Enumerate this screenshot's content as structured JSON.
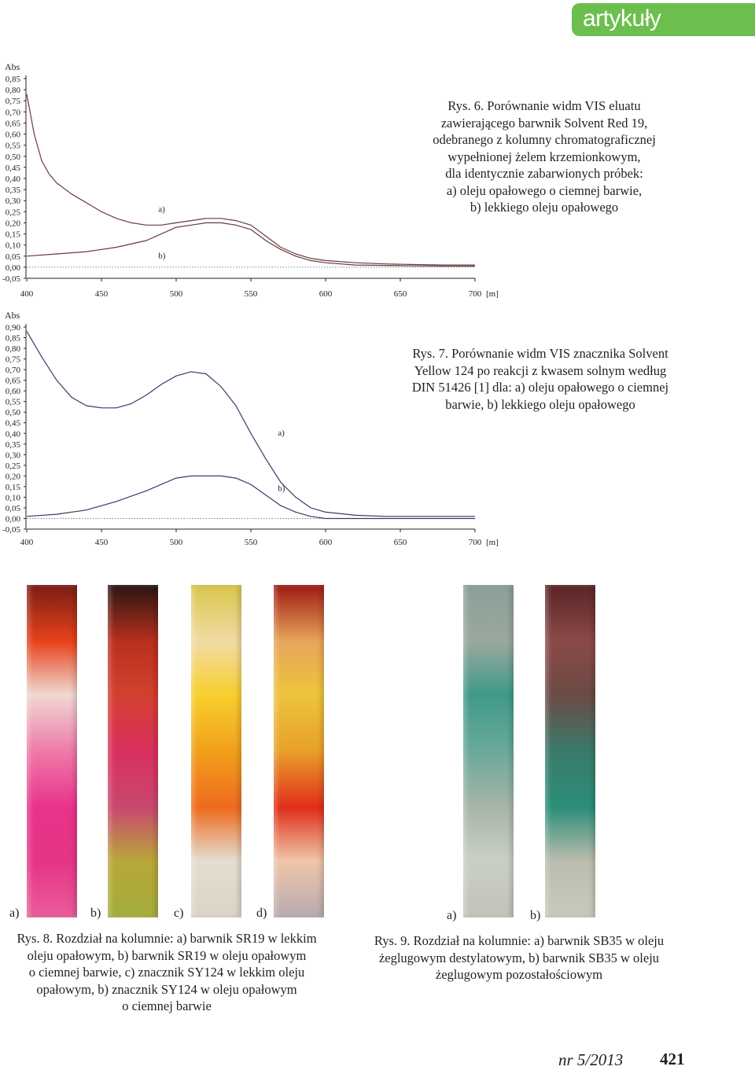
{
  "header": {
    "section": "artykuły"
  },
  "figures": [
    {
      "caption": "Rys. 6. Porównanie widm VIS eluatu zawierającego barwnik Solvent Red 19, odebranego z kolumny chromatograficznej wypełnionej żelem krzemionkowym, dla identycznie zabarwionych próbek: a) oleju opałowego o ciemnej barwie, b) lekkiego oleju opałowego",
      "caption_lines": [
        "Rys. 6. Porównanie widm VIS eluatu",
        "zawierającego barwnik Solvent Red 19,",
        "odebranego z kolumny chromatograficznej",
        "wypełnionej żelem krzemionkowym,",
        "dla identycznie zabarwionych próbek:",
        "a) oleju opałowego o ciemnej barwie,",
        "b) lekkiego oleju opałowego"
      ]
    },
    {
      "caption": "Rys. 7. Porównanie widm VIS znacznika Solvent Yellow 124 po reakcji z kwasem solnym według DIN 51426 [1] dla: a) oleju opałowego o ciemnej barwie, b) lekkiego oleju opałowego",
      "caption_lines": [
        "Rys. 7. Porównanie widm VIS znacznika Solvent",
        "Yellow 124 po reakcji z kwasem solnym według",
        "DIN 51426 [1] dla: a) oleju opałowego o ciemnej",
        "barwie, b) lekkiego oleju opałowego"
      ]
    },
    {
      "caption": "Rys. 8. Rozdział na kolumnie: a) barwnik SR19 w lekkim oleju opałowym, b) barwnik SR19 w oleju opałowym o ciemnej barwie, c) znacznik SY124 w lekkim oleju opałowym, b) znacznik SY124 w oleju opałowym o ciemnej barwie",
      "caption_lines": [
        "Rys. 8. Rozdział na kolumnie: a) barwnik SR19 w lekkim",
        "oleju opałowym, b) barwnik SR19 w oleju opałowym",
        "o ciemnej barwie, c) znacznik SY124 w lekkim oleju",
        "opałowym, b) znacznik SY124 w oleju opałowym",
        "o ciemnej barwie"
      ],
      "panel_labels": [
        "a)",
        "b)",
        "c)",
        "d)"
      ]
    },
    {
      "caption": "Rys. 9. Rozdział na kolumnie: a) barwnik SB35 w oleju żeglugowym destylatowym, b) barwnik SB35 w oleju żeglugowym pozostałościowym",
      "caption_lines": [
        "Rys. 9. Rozdział na kolumnie: a) barwnik SB35 w oleju",
        "żeglugowym destylatowym, b) barwnik SB35 w oleju",
        "żeglugowym pozostałościowym"
      ],
      "panel_labels": [
        "a)",
        "b)"
      ]
    }
  ],
  "chart_data": [
    {
      "type": "line",
      "ylabel": "Abs",
      "xunit": "[m]",
      "xlim": [
        400,
        700
      ],
      "ylim": [
        -0.05,
        0.85
      ],
      "xticks": [
        400,
        450,
        500,
        550,
        600,
        650,
        700
      ],
      "yticks": [
        "-0,05",
        "0,00",
        "0,05",
        "0,10",
        "0,15",
        "0,20",
        "0,25",
        "0,30",
        "0,35",
        "0,40",
        "0,45",
        "0,50",
        "0,55",
        "0,60",
        "0,65",
        "0,70",
        "0,75",
        "0,80",
        "0,85"
      ],
      "ytick_values": [
        -0.05,
        0.0,
        0.05,
        0.1,
        0.15,
        0.2,
        0.25,
        0.3,
        0.35,
        0.4,
        0.45,
        0.5,
        0.55,
        0.6,
        0.65,
        0.7,
        0.75,
        0.8,
        0.85
      ],
      "baseline": 0.0,
      "series": [
        {
          "name": "a)",
          "color": "#6b3a3a",
          "x": [
            400,
            405,
            410,
            415,
            420,
            430,
            440,
            450,
            460,
            470,
            480,
            490,
            500,
            510,
            520,
            530,
            540,
            550,
            560,
            570,
            580,
            590,
            600,
            620,
            640,
            660,
            680,
            700
          ],
          "y": [
            0.78,
            0.6,
            0.48,
            0.42,
            0.38,
            0.33,
            0.29,
            0.25,
            0.22,
            0.2,
            0.19,
            0.19,
            0.2,
            0.21,
            0.22,
            0.22,
            0.21,
            0.19,
            0.14,
            0.09,
            0.06,
            0.04,
            0.03,
            0.02,
            0.015,
            0.012,
            0.01,
            0.01
          ]
        },
        {
          "name": "b)",
          "color": "#6b3a3a",
          "x": [
            400,
            420,
            440,
            460,
            480,
            490,
            500,
            510,
            520,
            530,
            540,
            550,
            560,
            570,
            580,
            590,
            600,
            620,
            640,
            660,
            680,
            700
          ],
          "y": [
            0.05,
            0.06,
            0.07,
            0.09,
            0.12,
            0.15,
            0.18,
            0.19,
            0.2,
            0.2,
            0.19,
            0.17,
            0.12,
            0.08,
            0.05,
            0.03,
            0.02,
            0.01,
            0.008,
            0.006,
            0.005,
            0.005
          ]
        }
      ],
      "annotations": [
        {
          "text": "a)",
          "x": 488,
          "y": 0.25
        },
        {
          "text": "b)",
          "x": 488,
          "y": 0.04
        }
      ]
    },
    {
      "type": "line",
      "ylabel": "Abs",
      "xunit": "[m]",
      "xlim": [
        400,
        700
      ],
      "ylim": [
        -0.05,
        0.9
      ],
      "xticks": [
        400,
        450,
        500,
        550,
        600,
        650,
        700
      ],
      "yticks": [
        "-0,05",
        "0,00",
        "0,05",
        "0,10",
        "0,15",
        "0,20",
        "0,25",
        "0,30",
        "0,35",
        "0,40",
        "0,45",
        "0,50",
        "0,55",
        "0,60",
        "0,65",
        "0,70",
        "0,75",
        "0,80",
        "0,85",
        "0,90"
      ],
      "ytick_values": [
        -0.05,
        0.0,
        0.05,
        0.1,
        0.15,
        0.2,
        0.25,
        0.3,
        0.35,
        0.4,
        0.45,
        0.5,
        0.55,
        0.6,
        0.65,
        0.7,
        0.75,
        0.8,
        0.85,
        0.9
      ],
      "baseline": 0.0,
      "series": [
        {
          "name": "a)",
          "color": "#3a3a6b",
          "x": [
            400,
            410,
            420,
            430,
            440,
            450,
            460,
            470,
            480,
            490,
            500,
            510,
            520,
            530,
            540,
            550,
            560,
            570,
            580,
            590,
            600,
            620,
            640,
            660,
            680,
            700
          ],
          "y": [
            0.88,
            0.76,
            0.65,
            0.57,
            0.53,
            0.52,
            0.52,
            0.54,
            0.58,
            0.63,
            0.67,
            0.69,
            0.68,
            0.62,
            0.53,
            0.4,
            0.28,
            0.17,
            0.1,
            0.05,
            0.03,
            0.015,
            0.01,
            0.01,
            0.01,
            0.01
          ]
        },
        {
          "name": "b)",
          "color": "#3a3a6b",
          "x": [
            400,
            420,
            440,
            460,
            480,
            490,
            500,
            510,
            520,
            530,
            540,
            550,
            560,
            570,
            580,
            590,
            600,
            620,
            640,
            660,
            680,
            700
          ],
          "y": [
            0.01,
            0.02,
            0.04,
            0.08,
            0.13,
            0.16,
            0.19,
            0.2,
            0.2,
            0.2,
            0.19,
            0.16,
            0.11,
            0.06,
            0.03,
            0.01,
            0.0,
            0.0,
            0.0,
            0.0,
            0.0,
            0.0
          ]
        }
      ],
      "annotations": [
        {
          "text": "a)",
          "x": 568,
          "y": 0.39
        },
        {
          "text": "b)",
          "x": 568,
          "y": 0.13
        }
      ]
    }
  ],
  "photos": {
    "fig8_tubes": [
      {
        "name": "tube-a",
        "colors": [
          "#7a1d14",
          "#e8421a",
          "#f0d8d2",
          "#ee7aa8",
          "#e8338a",
          "#e43585",
          "#ea5c9c"
        ]
      },
      {
        "name": "tube-b",
        "colors": [
          "#2a1512",
          "#b8301d",
          "#d3402f",
          "#d9305e",
          "#c9486e",
          "#b8a73a",
          "#a3ad3a"
        ]
      },
      {
        "name": "tube-c",
        "colors": [
          "#d8c64a",
          "#f2dba5",
          "#f7cf2e",
          "#f2a01c",
          "#ee6a1e",
          "#e4ded0",
          "#d9d4c6"
        ]
      },
      {
        "name": "tube-d",
        "colors": [
          "#9d1a12",
          "#e8a55c",
          "#ecc43c",
          "#e8a02a",
          "#e02e1a",
          "#efc6a8",
          "#b8aab0"
        ]
      }
    ],
    "fig9_tubes": [
      {
        "name": "tube-a",
        "colors": [
          "#8aa09a",
          "#9aa89e",
          "#3f9a8a",
          "#6aa99a",
          "#a8b6aa",
          "#c9cfc4",
          "#c3c3b8"
        ]
      },
      {
        "name": "tube-b",
        "colors": [
          "#5a2526",
          "#8a4a48",
          "#6c4a44",
          "#3a7a6a",
          "#2c8e7a",
          "#bcbcae",
          "#c9c9bd"
        ]
      }
    ]
  },
  "footer": {
    "issue": "nr 5/2013",
    "page": "421"
  }
}
